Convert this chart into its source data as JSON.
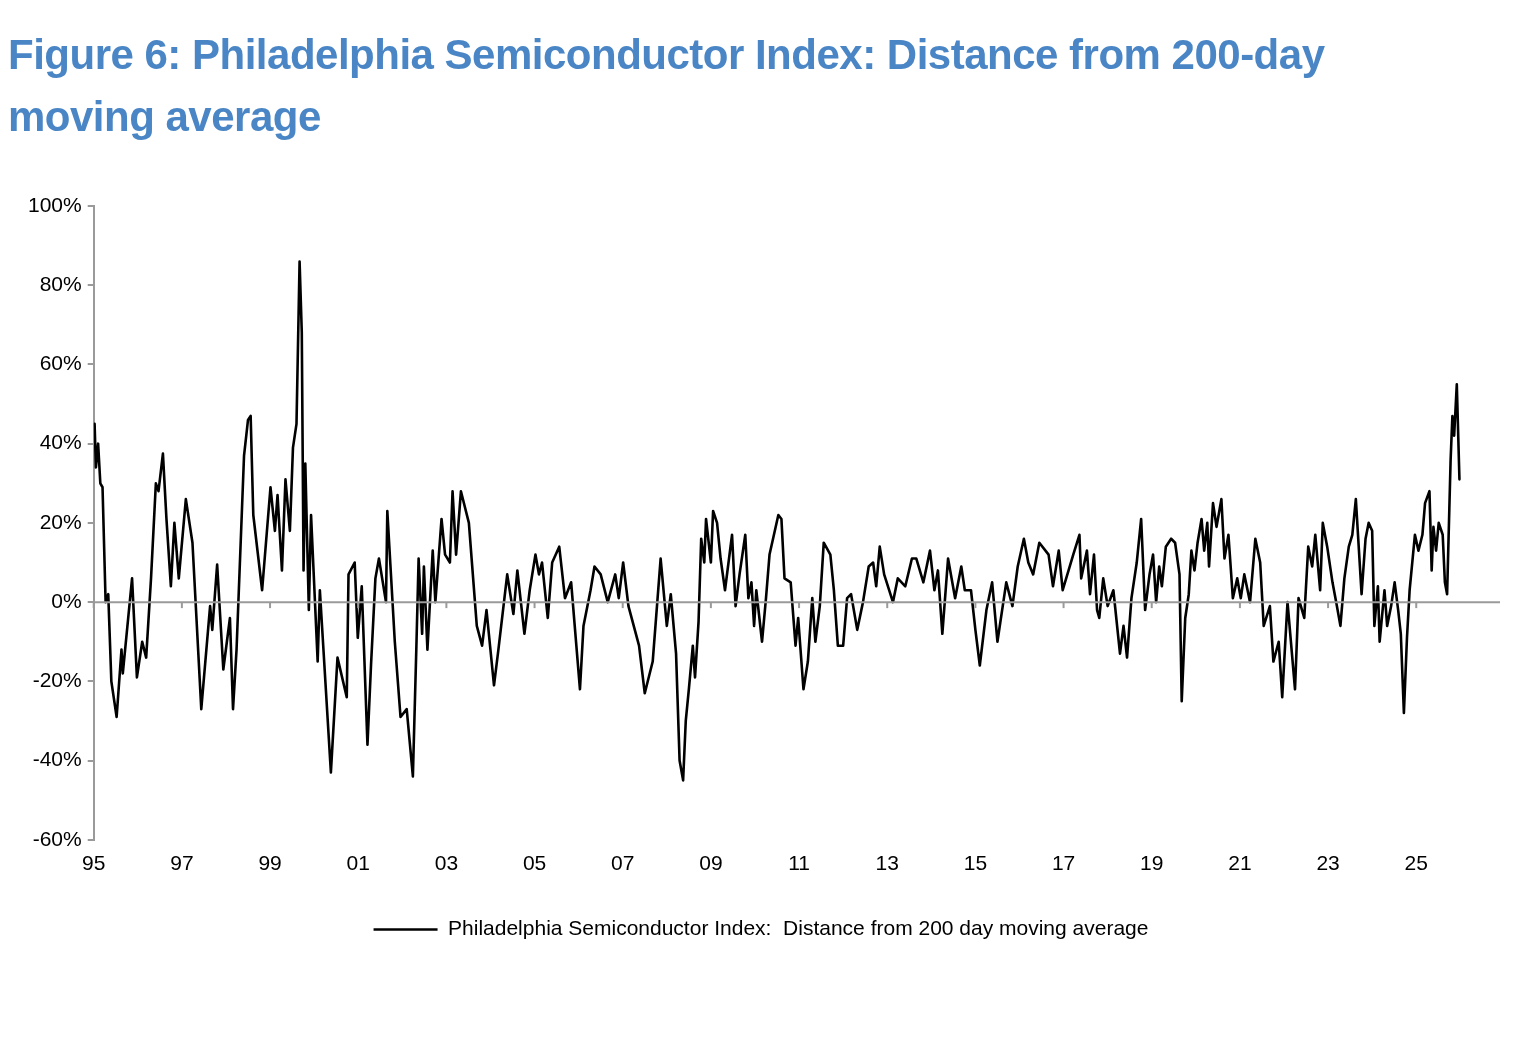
{
  "chart_data": {
    "type": "line",
    "title": "Figure 6: Philadelphia Semiconductor Index: Distance from 200-day moving average",
    "x": [
      1995.02,
      1995.05,
      1995.1,
      1995.15,
      1995.2,
      1995.27,
      1995.33,
      1995.4,
      1995.52,
      1995.63,
      1995.66,
      1995.87,
      1995.98,
      1996.1,
      1996.19,
      1996.3,
      1996.41,
      1996.47,
      1996.57,
      1996.65,
      1996.75,
      1996.83,
      1996.93,
      1997.09,
      1997.24,
      1997.44,
      1997.64,
      1997.69,
      1997.8,
      1997.94,
      1998.09,
      1998.16,
      1998.24,
      1998.41,
      1998.5,
      1998.56,
      1998.62,
      1998.82,
      1999.01,
      1999.11,
      1999.17,
      1999.27,
      1999.35,
      1999.45,
      1999.52,
      1999.6,
      1999.67,
      1999.72,
      1999.76,
      1999.8,
      1999.88,
      1999.93,
      2000.08,
      2000.13,
      2000.38,
      2000.53,
      2000.74,
      2000.78,
      2000.92,
      2000.99,
      2001.08,
      2001.21,
      2001.29,
      2001.39,
      2001.47,
      2001.63,
      2001.66,
      2001.83,
      2001.96,
      2002.1,
      2002.24,
      2002.32,
      2002.37,
      2002.45,
      2002.49,
      2002.57,
      2002.69,
      2002.75,
      2002.89,
      2002.97,
      2003.08,
      2003.14,
      2003.22,
      2003.33,
      2003.51,
      2003.69,
      2003.81,
      2003.91,
      2004.08,
      2004.18,
      2004.38,
      2004.52,
      2004.61,
      2004.77,
      2004.89,
      2005.02,
      2005.1,
      2005.17,
      2005.3,
      2005.4,
      2005.56,
      2005.69,
      2005.83,
      2006.03,
      2006.11,
      2006.27,
      2006.36,
      2006.5,
      2006.66,
      2006.83,
      2006.91,
      2007.01,
      2007.13,
      2007.37,
      2007.5,
      2007.68,
      2007.86,
      2008.0,
      2008.09,
      2008.21,
      2008.29,
      2008.37,
      2008.43,
      2008.5,
      2008.59,
      2008.64,
      2008.72,
      2008.78,
      2008.85,
      2008.89,
      2009.0,
      2009.05,
      2009.14,
      2009.22,
      2009.32,
      2009.48,
      2009.56,
      2009.65,
      2009.78,
      2009.85,
      2009.92,
      2009.98,
      2010.03,
      2010.16,
      2010.25,
      2010.33,
      2010.41,
      2010.53,
      2010.6,
      2010.67,
      2010.81,
      2010.92,
      2010.98,
      2011.1,
      2011.2,
      2011.3,
      2011.37,
      2011.47,
      2011.56,
      2011.71,
      2011.79,
      2011.88,
      2012.0,
      2012.09,
      2012.18,
      2012.32,
      2012.45,
      2012.58,
      2012.68,
      2012.75,
      2012.83,
      2012.93,
      2013.13,
      2013.24,
      2013.41,
      2013.56,
      2013.66,
      2013.82,
      2013.97,
      2014.07,
      2014.15,
      2014.25,
      2014.38,
      2014.54,
      2014.68,
      2014.76,
      2014.9,
      2015.0,
      2015.1,
      2015.25,
      2015.38,
      2015.5,
      2015.7,
      2015.84,
      2015.96,
      2016.1,
      2016.2,
      2016.31,
      2016.45,
      2016.66,
      2016.76,
      2016.89,
      2016.98,
      2017.22,
      2017.36,
      2017.4,
      2017.53,
      2017.6,
      2017.69,
      2017.76,
      2017.81,
      2017.9,
      2018.0,
      2018.13,
      2018.28,
      2018.36,
      2018.44,
      2018.54,
      2018.66,
      2018.76,
      2018.85,
      2018.95,
      2019.03,
      2019.1,
      2019.17,
      2019.23,
      2019.32,
      2019.44,
      2019.53,
      2019.63,
      2019.68,
      2019.76,
      2019.84,
      2019.9,
      2019.97,
      2020.04,
      2020.13,
      2020.19,
      2020.26,
      2020.3,
      2020.39,
      2020.47,
      2020.58,
      2020.65,
      2020.74,
      2020.84,
      2020.94,
      2021.02,
      2021.1,
      2021.23,
      2021.35,
      2021.46,
      2021.54,
      2021.68,
      2021.76,
      2021.88,
      2021.96,
      2022.08,
      2022.25,
      2022.33,
      2022.46,
      2022.55,
      2022.64,
      2022.71,
      2022.82,
      2022.88,
      2022.98,
      2023.1,
      2023.2,
      2023.28,
      2023.37,
      2023.47,
      2023.55,
      2023.63,
      2023.76,
      2023.85,
      2023.92,
      2024.0,
      2024.05,
      2024.13,
      2024.17,
      2024.28,
      2024.34,
      2024.43,
      2024.51,
      2024.59,
      2024.65,
      2024.72,
      2024.79,
      2024.85,
      2024.97,
      2025.05,
      2025.14,
      2025.2,
      2025.3,
      2025.35,
      2025.39,
      2025.45,
      2025.51,
      2025.6,
      2025.65,
      2025.7,
      2025.78,
      2025.82,
      2025.86,
      2025.92,
      2025.98
    ],
    "series": [
      {
        "name": "Philadelphia Semiconductor Index:  Distance from 200 day moving average",
        "color": "#000000",
        "values": [
          45,
          34,
          40,
          30,
          29,
          0,
          2,
          -20,
          -29,
          -12,
          -18,
          6,
          -19,
          -10,
          -14,
          6,
          30,
          28,
          37.5,
          21,
          4,
          20,
          6,
          26,
          15,
          -27,
          -1,
          -7,
          9.5,
          -17,
          -4,
          -27,
          -12,
          37,
          46,
          47,
          22,
          3,
          29,
          18,
          27,
          8,
          31,
          18,
          39,
          45,
          86,
          68,
          8,
          35,
          -2,
          22,
          -15,
          3,
          -43,
          -14,
          -24,
          7,
          10,
          -9,
          4,
          -36,
          -16,
          6,
          11,
          0,
          23,
          -10,
          -29,
          -27,
          -44,
          -11,
          11,
          -8,
          9,
          -12,
          13,
          0,
          21,
          12,
          10,
          28,
          12,
          28,
          20,
          -6,
          -11,
          -2,
          -21,
          -12,
          7,
          -3,
          8,
          -8,
          3,
          12,
          7,
          10,
          -4,
          10,
          14,
          1,
          5,
          -22,
          -6,
          3,
          9,
          7,
          0,
          7,
          1,
          10,
          -1,
          -11,
          -23,
          -15,
          11,
          -6,
          2,
          -13,
          -40,
          -45,
          -30,
          -22,
          -11,
          -19,
          -5,
          16,
          10,
          21,
          10,
          23,
          20,
          11,
          3,
          17,
          -1,
          7,
          17,
          1,
          5,
          -6,
          3,
          -10,
          1,
          12,
          16,
          22,
          21,
          6,
          5,
          -11,
          -4,
          -22,
          -15,
          1,
          -10,
          -1,
          15,
          12,
          3,
          -11,
          -11,
          1,
          2,
          -7,
          0,
          9,
          10,
          4,
          14,
          7,
          0,
          6,
          4,
          11,
          11,
          5,
          13,
          3,
          8,
          -8,
          11,
          1,
          9,
          3,
          3,
          -7,
          -16,
          -2,
          5,
          -10,
          5,
          -1,
          9,
          16,
          10,
          7,
          15,
          12,
          4,
          13,
          3,
          12,
          17,
          6,
          13,
          2,
          12,
          -2,
          -4,
          6,
          -1,
          3,
          -13,
          -6,
          -14,
          1,
          10,
          21,
          -2,
          7,
          12,
          0,
          9,
          4,
          14,
          16,
          15,
          7,
          -25,
          -4,
          2,
          13,
          8,
          15,
          21,
          13,
          20,
          9,
          25,
          19,
          26,
          11,
          17,
          1,
          6,
          1,
          7,
          0,
          16,
          10,
          -6,
          -1,
          -15,
          -10,
          -24,
          0,
          -22,
          1,
          -4,
          14,
          9,
          17,
          3,
          20,
          14,
          5,
          -1,
          -6,
          6,
          14,
          17,
          26,
          2,
          16,
          20,
          18,
          -6,
          4,
          -10,
          3,
          -6,
          -1,
          5,
          -2,
          -8,
          -28,
          -9,
          3,
          17,
          13,
          17,
          25,
          28,
          8,
          19,
          13,
          20,
          17,
          5,
          2,
          36,
          47,
          42,
          55,
          31
        ]
      }
    ],
    "xlim": [
      1995,
      2026.9
    ],
    "xticks": [
      {
        "value": 1995,
        "label": "95"
      },
      {
        "value": 1997,
        "label": "97"
      },
      {
        "value": 1999,
        "label": "99"
      },
      {
        "value": 2001,
        "label": "01"
      },
      {
        "value": 2003,
        "label": "03"
      },
      {
        "value": 2005,
        "label": "05"
      },
      {
        "value": 2007,
        "label": "07"
      },
      {
        "value": 2009,
        "label": "09"
      },
      {
        "value": 2011,
        "label": "11"
      },
      {
        "value": 2013,
        "label": "13"
      },
      {
        "value": 2015,
        "label": "15"
      },
      {
        "value": 2017,
        "label": "17"
      },
      {
        "value": 2019,
        "label": "19"
      },
      {
        "value": 2021,
        "label": "21"
      },
      {
        "value": 2023,
        "label": "23"
      },
      {
        "value": 2025,
        "label": "25"
      }
    ],
    "ylim": [
      -60,
      100
    ],
    "yticks": [
      {
        "value": -60,
        "label": "-60%"
      },
      {
        "value": -40,
        "label": "-40%"
      },
      {
        "value": -20,
        "label": "-20%"
      },
      {
        "value": 0,
        "label": "0%"
      },
      {
        "value": 20,
        "label": "20%"
      },
      {
        "value": 40,
        "label": "40%"
      },
      {
        "value": 60,
        "label": "60%"
      },
      {
        "value": 80,
        "label": "80%"
      },
      {
        "value": 100,
        "label": "100%"
      }
    ],
    "legend": "bottom"
  }
}
